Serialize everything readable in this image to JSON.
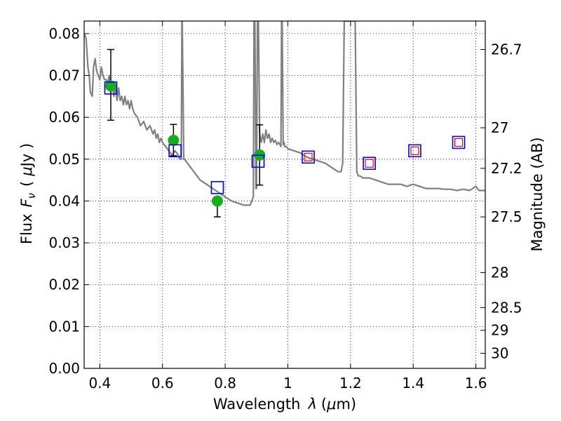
{
  "chart_data": {
    "type": "scatter",
    "title": "",
    "xlabel_text": "Wavelength",
    "xlabel_symbol": "λ",
    "xlabel_unit_open": "(",
    "xlabel_unit_mu": "μ",
    "xlabel_unit_rest": "m)",
    "ylabel_text": "Flux",
    "ylabel_symbol": "F",
    "ylabel_sub": "ν",
    "ylabel_unit_open": "(",
    "ylabel_unit_mu": "μ",
    "ylabel_unit_rest": "Jy )",
    "y2label": "Magnitude (AB)",
    "xlim": [
      0.35,
      1.63
    ],
    "ylim": [
      0.0,
      0.083
    ],
    "grid": true,
    "xticks": [
      {
        "value": 0.4,
        "label": "0.4"
      },
      {
        "value": 0.6,
        "label": "0.6"
      },
      {
        "value": 0.8,
        "label": "0.8"
      },
      {
        "value": 1.0,
        "label": "1"
      },
      {
        "value": 1.2,
        "label": "1.2"
      },
      {
        "value": 1.4,
        "label": "1.4"
      },
      {
        "value": 1.6,
        "label": "1.6"
      }
    ],
    "yticks": [
      {
        "value": 0.0,
        "label": "0.00"
      },
      {
        "value": 0.01,
        "label": "0.01"
      },
      {
        "value": 0.02,
        "label": "0.02"
      },
      {
        "value": 0.03,
        "label": "0.03"
      },
      {
        "value": 0.04,
        "label": "0.04"
      },
      {
        "value": 0.05,
        "label": "0.05"
      },
      {
        "value": 0.06,
        "label": "0.06"
      },
      {
        "value": 0.07,
        "label": "0.07"
      },
      {
        "value": 0.08,
        "label": "0.08"
      }
    ],
    "y2ticks": [
      {
        "flux": 0.0762,
        "label": "26.7"
      },
      {
        "flux": 0.0575,
        "label": "27"
      },
      {
        "flux": 0.0478,
        "label": "27.2"
      },
      {
        "flux": 0.0362,
        "label": "27.5"
      },
      {
        "flux": 0.0229,
        "label": "28"
      },
      {
        "flux": 0.0145,
        "label": "28.5"
      },
      {
        "flux": 0.0091,
        "label": "29"
      },
      {
        "flux": 0.0036,
        "label": "30"
      }
    ],
    "observed": {
      "color": "#1aad1a",
      "points": [
        {
          "x": 0.435,
          "y": 0.0675,
          "err_low": 0.0593,
          "err_high": 0.0762
        },
        {
          "x": 0.635,
          "y": 0.0545,
          "err_low": 0.0508,
          "err_high": 0.0583
        },
        {
          "x": 0.775,
          "y": 0.04,
          "err_low": 0.0362,
          "err_high": 0.04
        },
        {
          "x": 0.91,
          "y": 0.051,
          "err_low": 0.0438,
          "err_high": 0.0582
        }
      ]
    },
    "model_bandpass": {
      "color": "#0000ff",
      "points": [
        {
          "x": 0.435,
          "y": 0.067
        },
        {
          "x": 0.64,
          "y": 0.052
        },
        {
          "x": 0.775,
          "y": 0.0432
        },
        {
          "x": 0.905,
          "y": 0.0495
        },
        {
          "x": 1.065,
          "y": 0.0505
        },
        {
          "x": 1.26,
          "y": 0.049
        },
        {
          "x": 1.405,
          "y": 0.052
        },
        {
          "x": 1.545,
          "y": 0.054
        }
      ]
    },
    "upper_limits": {
      "color": "#ff0000",
      "points": [
        {
          "x": 1.065,
          "y": 0.0505
        },
        {
          "x": 1.26,
          "y": 0.049
        },
        {
          "x": 1.405,
          "y": 0.052
        },
        {
          "x": 1.545,
          "y": 0.054
        }
      ]
    },
    "sed_model": {
      "color": "#808080",
      "x": [
        0.35,
        0.356,
        0.362,
        0.366,
        0.37,
        0.376,
        0.38,
        0.385,
        0.39,
        0.395,
        0.4,
        0.405,
        0.41,
        0.415,
        0.42,
        0.425,
        0.43,
        0.435,
        0.44,
        0.445,
        0.45,
        0.455,
        0.46,
        0.465,
        0.47,
        0.475,
        0.48,
        0.485,
        0.49,
        0.495,
        0.5,
        0.505,
        0.51,
        0.52,
        0.53,
        0.54,
        0.55,
        0.56,
        0.57,
        0.575,
        0.58,
        0.585,
        0.59,
        0.595,
        0.6,
        0.61,
        0.62,
        0.63,
        0.64,
        0.65,
        0.655,
        0.66,
        0.662,
        0.663,
        0.668,
        0.67,
        0.675,
        0.68,
        0.69,
        0.7,
        0.72,
        0.74,
        0.76,
        0.78,
        0.8,
        0.82,
        0.84,
        0.86,
        0.87,
        0.88,
        0.89,
        0.892,
        0.895,
        0.898,
        0.9,
        0.903,
        0.906,
        0.91,
        0.915,
        0.92,
        0.925,
        0.93,
        0.935,
        0.94,
        0.945,
        0.95,
        0.955,
        0.96,
        0.965,
        0.97,
        0.975,
        0.978,
        0.98,
        0.982,
        0.985,
        0.988,
        0.99,
        0.995,
        1.0,
        1.02,
        1.04,
        1.06,
        1.08,
        1.1,
        1.12,
        1.14,
        1.16,
        1.17,
        1.175,
        1.18,
        1.19,
        1.2,
        1.21,
        1.215,
        1.22,
        1.225,
        1.23,
        1.24,
        1.26,
        1.28,
        1.3,
        1.32,
        1.34,
        1.36,
        1.38,
        1.4,
        1.42,
        1.44,
        1.46,
        1.48,
        1.5,
        1.52,
        1.54,
        1.56,
        1.58,
        1.59,
        1.6,
        1.61,
        1.63
      ],
      "y": [
        0.08,
        0.079,
        0.072,
        0.07,
        0.066,
        0.065,
        0.072,
        0.074,
        0.071,
        0.07,
        0.069,
        0.072,
        0.07,
        0.069,
        0.069,
        0.068,
        0.07,
        0.066,
        0.068,
        0.065,
        0.067,
        0.064,
        0.067,
        0.064,
        0.065,
        0.063,
        0.065,
        0.063,
        0.064,
        0.062,
        0.064,
        0.062,
        0.061,
        0.06,
        0.058,
        0.059,
        0.057,
        0.058,
        0.056,
        0.057,
        0.055,
        0.056,
        0.054,
        0.055,
        0.054,
        0.053,
        0.052,
        0.051,
        0.052,
        0.051,
        0.05,
        0.05,
        0.083,
        0.083,
        0.05,
        0.05,
        0.0495,
        0.049,
        0.048,
        0.047,
        0.045,
        0.044,
        0.043,
        0.042,
        0.041,
        0.04,
        0.0395,
        0.039,
        0.039,
        0.039,
        0.041,
        0.083,
        0.083,
        0.043,
        0.043,
        0.083,
        0.083,
        0.056,
        0.054,
        0.056,
        0.054,
        0.057,
        0.055,
        0.056,
        0.054,
        0.055,
        0.054,
        0.0545,
        0.0535,
        0.054,
        0.0535,
        0.053,
        0.083,
        0.083,
        0.0535,
        0.054,
        0.053,
        0.053,
        0.0525,
        0.052,
        0.0515,
        0.0505,
        0.05,
        0.0495,
        0.049,
        0.048,
        0.047,
        0.047,
        0.049,
        0.083,
        0.083,
        0.083,
        0.083,
        0.083,
        0.047,
        0.046,
        0.046,
        0.0455,
        0.0455,
        0.045,
        0.0445,
        0.044,
        0.044,
        0.044,
        0.0435,
        0.044,
        0.0435,
        0.043,
        0.043,
        0.043,
        0.0428,
        0.0428,
        0.0425,
        0.0428,
        0.0425,
        0.043,
        0.0435,
        0.0425,
        0.0425
      ]
    }
  }
}
